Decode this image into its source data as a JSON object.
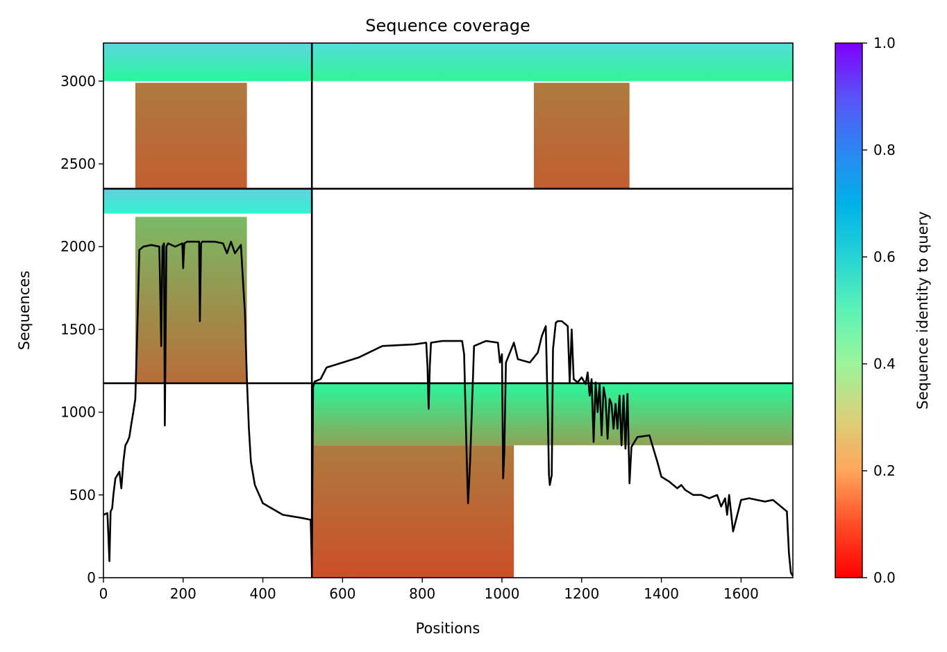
{
  "chart_data": {
    "type": "heatmap",
    "title": "Sequence coverage",
    "xlabel": "Positions",
    "ylabel": "Sequences",
    "xlim": [
      0,
      1730
    ],
    "ylim": [
      0,
      3230
    ],
    "xticks": [
      0,
      200,
      400,
      600,
      800,
      1000,
      1200,
      1400,
      1600
    ],
    "yticks": [
      0,
      500,
      1000,
      1500,
      2000,
      2500,
      3000
    ],
    "grid": false,
    "colorbar": {
      "label": "Sequence identity to query",
      "range": [
        0.0,
        1.0
      ],
      "ticks": [
        "0.0",
        "0.2",
        "0.4",
        "0.6",
        "0.8",
        "1.0"
      ],
      "colormap": "rainbow_r"
    },
    "dividers": {
      "vertical": [
        523
      ],
      "horizontal": [
        1175,
        2350
      ]
    },
    "blocks": [
      {
        "x": [
          0,
          523
        ],
        "rows": [
          3000,
          3230
        ],
        "identity": [
          0.42,
          0.68
        ]
      },
      {
        "x": [
          80,
          360
        ],
        "rows": [
          2355,
          2990
        ],
        "identity": [
          0.12,
          0.16
        ]
      },
      {
        "x": [
          523,
          1730
        ],
        "rows": [
          3000,
          3230
        ],
        "identity": [
          0.4,
          0.66
        ]
      },
      {
        "x": [
          1080,
          1320
        ],
        "rows": [
          2355,
          2990
        ],
        "identity": [
          0.12,
          0.16
        ]
      },
      {
        "x": [
          0,
          523
        ],
        "rows": [
          2200,
          2350
        ],
        "identity": [
          0.6,
          0.7
        ]
      },
      {
        "x": [
          80,
          360
        ],
        "rows": [
          1180,
          2180
        ],
        "identity": [
          0.14,
          0.26
        ]
      },
      {
        "x": [
          523,
          1730
        ],
        "rows": [
          800,
          1175
        ],
        "identity": [
          0.22,
          0.42
        ]
      },
      {
        "x": [
          523,
          1030
        ],
        "rows": [
          0,
          800
        ],
        "identity": [
          0.1,
          0.16
        ]
      }
    ],
    "series": [
      {
        "color": "#000000",
        "x": [
          0,
          10,
          15,
          18,
          22,
          25,
          30,
          40,
          45,
          50,
          55,
          60,
          65,
          70,
          75,
          80,
          85,
          90,
          100,
          120,
          140,
          142,
          145,
          148,
          152,
          154,
          158,
          162,
          180,
          198,
          200,
          203,
          210,
          240,
          242,
          245,
          248,
          260,
          280,
          300,
          310,
          320,
          330,
          345,
          350,
          355,
          360,
          365,
          370,
          380,
          400,
          450,
          500,
          520,
          523,
          526,
          530,
          545,
          560,
          600,
          640,
          700,
          780,
          810,
          813,
          816,
          819,
          822,
          850,
          900,
          905,
          912,
          915,
          920,
          930,
          960,
          990,
          995,
          1000,
          1003,
          1006,
          1010,
          1030,
          1040,
          1070,
          1090,
          1100,
          1110,
          1115,
          1118,
          1120,
          1125,
          1128,
          1135,
          1140,
          1150,
          1165,
          1170,
          1175,
          1180,
          1190,
          1200,
          1210,
          1215,
          1220,
          1225,
          1230,
          1235,
          1240,
          1245,
          1250,
          1255,
          1260,
          1265,
          1270,
          1275,
          1280,
          1285,
          1290,
          1295,
          1300,
          1305,
          1310,
          1315,
          1320,
          1325,
          1340,
          1370,
          1380,
          1390,
          1400,
          1420,
          1440,
          1450,
          1460,
          1480,
          1500,
          1520,
          1540,
          1550,
          1560,
          1565,
          1570,
          1580,
          1600,
          1620,
          1640,
          1660,
          1680,
          1700,
          1715,
          1720,
          1725,
          1730
        ],
        "y": [
          380,
          390,
          100,
          400,
          420,
          500,
          600,
          640,
          540,
          700,
          800,
          820,
          850,
          930,
          1000,
          1080,
          1500,
          1980,
          2000,
          2010,
          2000,
          1800,
          1400,
          2000,
          2020,
          920,
          2000,
          2020,
          2000,
          2020,
          1870,
          2020,
          2030,
          2030,
          1550,
          2020,
          2030,
          2030,
          2030,
          2020,
          1960,
          2030,
          1960,
          2010,
          1800,
          1600,
          1200,
          900,
          700,
          560,
          450,
          380,
          360,
          350,
          60,
          1150,
          1185,
          1200,
          1270,
          1300,
          1330,
          1400,
          1410,
          1420,
          1280,
          1020,
          1280,
          1420,
          1430,
          1430,
          1350,
          680,
          450,
          700,
          1400,
          1430,
          1420,
          1300,
          1350,
          600,
          760,
          1300,
          1420,
          1320,
          1300,
          1360,
          1460,
          1520,
          1000,
          620,
          560,
          620,
          1380,
          1540,
          1550,
          1550,
          1520,
          1180,
          1500,
          1200,
          1180,
          1210,
          1170,
          1240,
          1100,
          1200,
          820,
          1180,
          1000,
          1170,
          860,
          1150,
          1080,
          840,
          1080,
          1050,
          900,
          1050,
          900,
          1100,
          800,
          1100,
          780,
          1110,
          570,
          790,
          850,
          860,
          780,
          700,
          610,
          580,
          540,
          560,
          530,
          500,
          500,
          480,
          500,
          430,
          480,
          380,
          500,
          280,
          470,
          480,
          470,
          460,
          470,
          430,
          400,
          150,
          30,
          10
        ]
      }
    ]
  }
}
